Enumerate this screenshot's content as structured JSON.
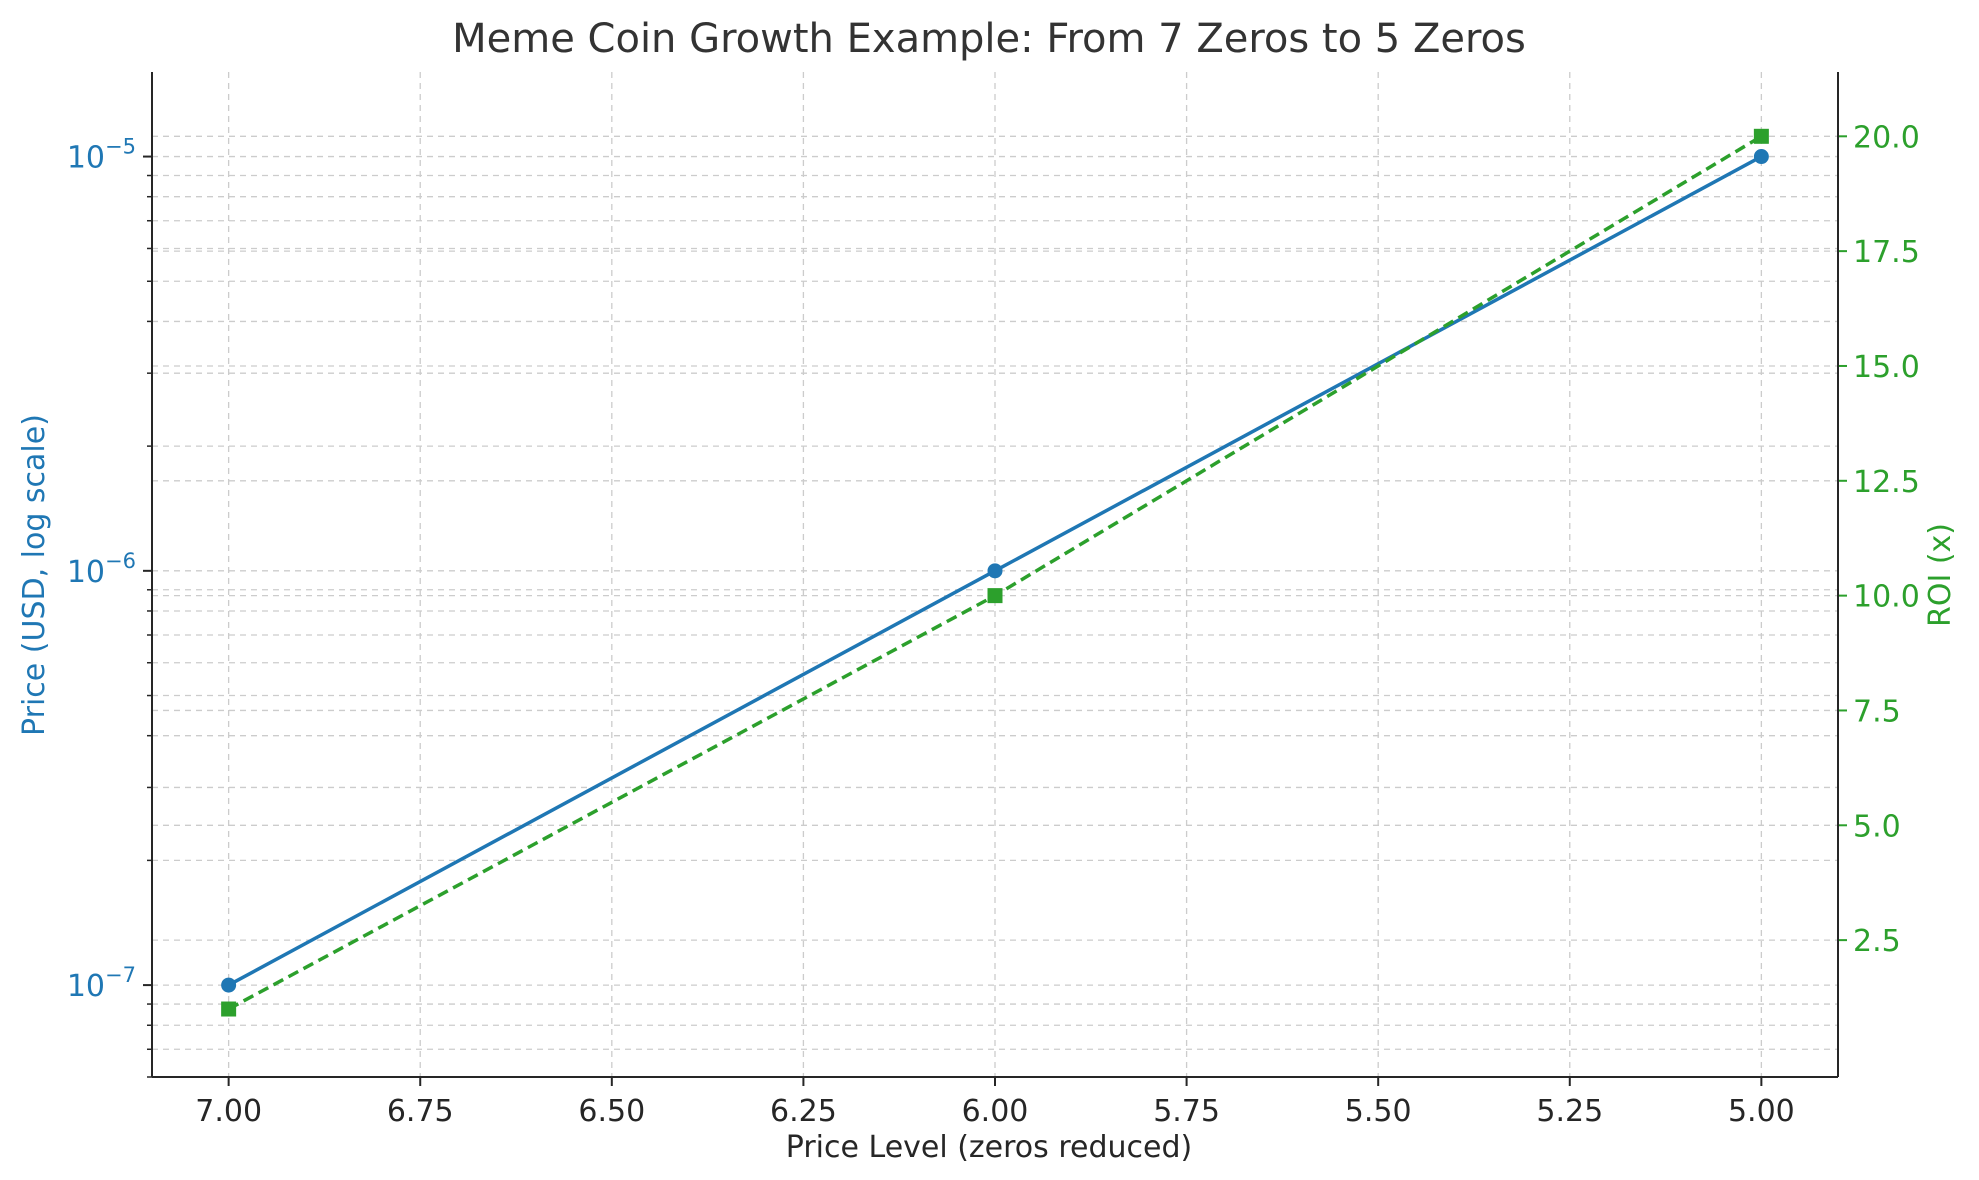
{
  "chart_data": {
    "type": "line",
    "title": "Meme Coin Growth Example: From 7 Zeros to 5 Zeros",
    "xlabel": "Price Level (zeros reduced)",
    "ylabel": "Price (USD, log scale)",
    "y2label": "ROI (x)",
    "x_ticks": [
      "7.00",
      "6.75",
      "6.50",
      "6.25",
      "6.00",
      "5.75",
      "5.50",
      "5.25",
      "5.00"
    ],
    "xlim": [
      7.1,
      4.9
    ],
    "x_reversed": true,
    "y_scale": "log",
    "ylim": [
      6e-08,
      1.6e-05
    ],
    "y_ticks": [
      {
        "value": 1e-07,
        "base": "10",
        "exp": "−7"
      },
      {
        "value": 1e-06,
        "base": "10",
        "exp": "−6"
      },
      {
        "value": 1e-05,
        "base": "10",
        "exp": "−5"
      }
    ],
    "y2lim": [
      -0.48,
      21.4
    ],
    "y2_ticks": [
      "2.5",
      "5.0",
      "7.5",
      "10.0",
      "12.5",
      "15.0",
      "17.5",
      "20.0"
    ],
    "grid": true,
    "series": [
      {
        "axis": "left",
        "x": [
          7,
          6,
          5
        ],
        "values": [
          1e-07,
          1e-06,
          1e-05
        ],
        "color": "#1f77b4",
        "marker": "circle",
        "line_style": "solid"
      },
      {
        "axis": "right",
        "x": [
          7,
          6,
          5
        ],
        "values": [
          1,
          10,
          20
        ],
        "color": "#2ca02c",
        "marker": "square",
        "line_style": "dashed"
      }
    ]
  },
  "colors": {
    "left_axis": "#1f77b4",
    "right_axis": "#2ca02c",
    "text": "#262626",
    "grid": "#cccccc"
  }
}
